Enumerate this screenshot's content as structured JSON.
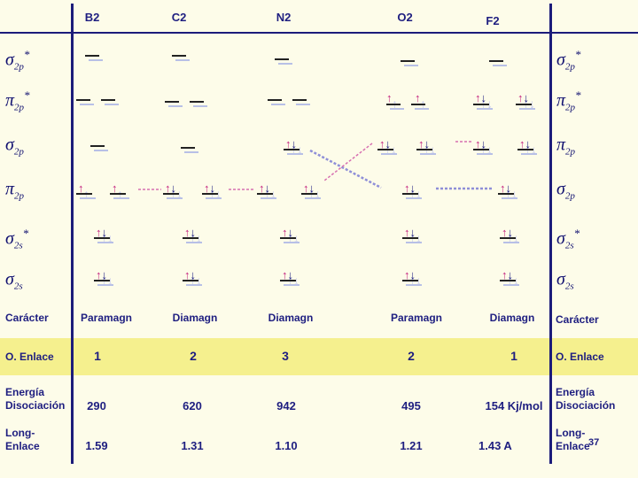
{
  "molecules": [
    "B2",
    "C2",
    "N2",
    "O2",
    "F2"
  ],
  "orbitals_left": [
    {
      "sym": "σ",
      "sub": "2p",
      "sup": "*",
      "icon": "sigma-2p-antibonding"
    },
    {
      "sym": "π",
      "sub": "2p",
      "sup": "*",
      "icon": "pi-2p-antibonding"
    },
    {
      "sym": "σ",
      "sub": "2p",
      "sup": "",
      "icon": "sigma-2p"
    },
    {
      "sym": "π",
      "sub": "2p",
      "sup": "",
      "icon": "pi-2p"
    },
    {
      "sym": "σ",
      "sub": "2s",
      "sup": "*",
      "icon": "sigma-2s-antibonding"
    },
    {
      "sym": "σ",
      "sub": "2s",
      "sup": "",
      "icon": "sigma-2s"
    }
  ],
  "orbitals_right": [
    {
      "sym": "σ",
      "sub": "2p",
      "sup": "*"
    },
    {
      "sym": "π",
      "sub": "2p",
      "sup": "*"
    },
    {
      "sym": "π",
      "sub": "2p",
      "sup": ""
    },
    {
      "sym": "σ",
      "sub": "2p",
      "sup": ""
    },
    {
      "sym": "σ",
      "sub": "2s",
      "sup": "*"
    },
    {
      "sym": "σ",
      "sub": "2s",
      "sup": ""
    }
  ],
  "labels": {
    "caracter": "Carácter",
    "enlace": "O. Enlace",
    "energia_1": "Energía",
    "energia_2": "Disociación",
    "long_1": "Long-",
    "long_2": "Enlace",
    "caracter_r": "Carácter",
    "enlace_r": "O. Enlace",
    "energia_r1": "Energía",
    "energia_r2": "Disociación",
    "long_r1": "Long-",
    "long_r2": "Enlace"
  },
  "caracter_values": [
    "Paramagn",
    "Diamagn",
    "Diamagn",
    "Paramagn",
    "Diamagn"
  ],
  "enlace_values": [
    "1",
    "2",
    "3",
    "2",
    "1"
  ],
  "energia_values": [
    "290",
    "620",
    "942",
    "495",
    "154 Kj/mol"
  ],
  "long_values": [
    "1.59",
    "1.31",
    "1.10",
    "1.21",
    "1.43  A"
  ],
  "page_number": "37",
  "colors": {
    "background": "#fdfce9",
    "highlight": "#f5f08e",
    "text": "#1e1e80",
    "spin_up": "#c4227e",
    "spin_down": "#1a1a80"
  }
}
